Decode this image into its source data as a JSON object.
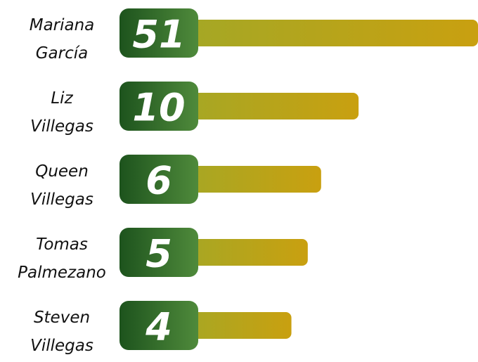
{
  "chart_data": {
    "type": "bar",
    "categories": [
      [
        "Mariana",
        "García"
      ],
      [
        "Liz",
        "Villegas"
      ],
      [
        "Queen",
        "Villegas"
      ],
      [
        "Tomas",
        "Palmezano"
      ],
      [
        "Steven",
        "Villegas"
      ]
    ],
    "values": [
      51,
      10,
      6,
      5,
      4
    ],
    "xlim": [
      1,
      51
    ],
    "log_scale": true,
    "box_color": [
      "#1d531d",
      "#4f8a3b"
    ],
    "color": [
      "#a3a826",
      "#c9a010"
    ]
  }
}
